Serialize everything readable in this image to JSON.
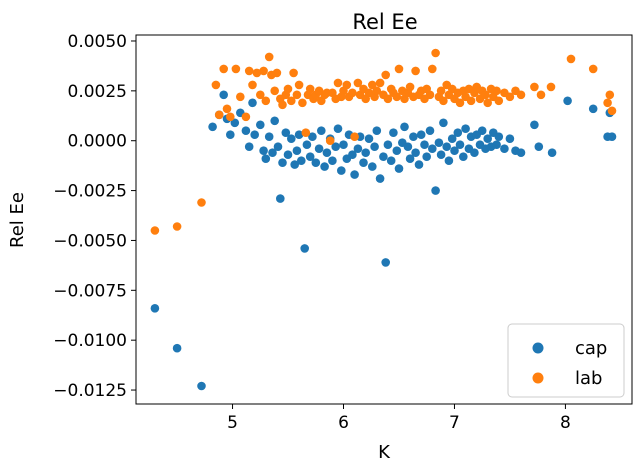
{
  "chart_data": {
    "type": "scatter",
    "title": "Rel Ee",
    "xlabel": "K",
    "ylabel": "Rel Ee",
    "xlim": [
      4.13,
      8.6
    ],
    "ylim": [
      -0.0132,
      0.0053
    ],
    "xticks": [
      5,
      6,
      7,
      8
    ],
    "yticks": [
      0.005,
      0.0025,
      0.0,
      -0.0025,
      -0.005,
      -0.0075,
      -0.01,
      -0.0125
    ],
    "ytick_labels": [
      "0.0050",
      "0.0025",
      "0.0000",
      "−0.0025",
      "−0.0050",
      "−0.0075",
      "−0.0100",
      "−0.0125"
    ],
    "grid": false,
    "legend_position": "lower-right",
    "series": [
      {
        "name": "cap",
        "color": "#1f77b4",
        "points": [
          [
            4.3,
            -0.0084
          ],
          [
            4.5,
            -0.0104
          ],
          [
            4.72,
            -0.0123
          ],
          [
            4.82,
            0.0007
          ],
          [
            4.88,
            0.0013
          ],
          [
            4.92,
            0.0023
          ],
          [
            4.95,
            0.0011
          ],
          [
            4.98,
            0.0003
          ],
          [
            5.02,
            0.0009
          ],
          [
            5.07,
            0.0014
          ],
          [
            5.12,
            0.0005
          ],
          [
            5.15,
            -0.0003
          ],
          [
            5.18,
            0.0019
          ],
          [
            5.2,
            0.0003
          ],
          [
            5.25,
            0.0008
          ],
          [
            5.28,
            -0.0005
          ],
          [
            5.3,
            -0.0009
          ],
          [
            5.33,
            0.0002
          ],
          [
            5.36,
            -0.0006
          ],
          [
            5.38,
            0.001
          ],
          [
            5.41,
            -0.0003
          ],
          [
            5.43,
            -0.0029
          ],
          [
            5.45,
            -0.0011
          ],
          [
            5.48,
            0.0004
          ],
          [
            5.5,
            -0.0007
          ],
          [
            5.53,
            0.0001
          ],
          [
            5.56,
            -0.0012
          ],
          [
            5.58,
            -0.0005
          ],
          [
            5.6,
            0.0003
          ],
          [
            5.62,
            -0.001
          ],
          [
            5.65,
            -0.0054
          ],
          [
            5.67,
            -0.0002
          ],
          [
            5.7,
            -0.0008
          ],
          [
            5.72,
            0.0002
          ],
          [
            5.75,
            -0.0011
          ],
          [
            5.78,
            -0.0004
          ],
          [
            5.8,
            0.0005
          ],
          [
            5.83,
            -0.0013
          ],
          [
            5.85,
            -0.0006
          ],
          [
            5.88,
            0.0001
          ],
          [
            5.9,
            -0.001
          ],
          [
            5.93,
            -0.0003
          ],
          [
            5.95,
            0.0006
          ],
          [
            5.98,
            -0.0015
          ],
          [
            6.0,
            -0.0002
          ],
          [
            6.03,
            -0.0009
          ],
          [
            6.05,
            0.0003
          ],
          [
            6.08,
            -0.0007
          ],
          [
            6.1,
            -0.0017
          ],
          [
            6.13,
            -0.0004
          ],
          [
            6.15,
            0.0002
          ],
          [
            6.18,
            -0.0011
          ],
          [
            6.2,
            -0.0006
          ],
          [
            6.23,
            0.0001
          ],
          [
            6.26,
            -0.0013
          ],
          [
            6.28,
            -0.0003
          ],
          [
            6.3,
            0.0005
          ],
          [
            6.33,
            -0.0019
          ],
          [
            6.36,
            -0.0008
          ],
          [
            6.38,
            -0.0061
          ],
          [
            6.4,
            -0.0002
          ],
          [
            6.43,
            -0.001
          ],
          [
            6.45,
            0.0004
          ],
          [
            6.48,
            -0.0005
          ],
          [
            6.5,
            -0.0014
          ],
          [
            6.53,
            -0.0001
          ],
          [
            6.55,
            0.0007
          ],
          [
            6.58,
            -0.0003
          ],
          [
            6.6,
            -0.0009
          ],
          [
            6.63,
            0.0002
          ],
          [
            6.65,
            -0.0006
          ],
          [
            6.68,
            -0.0012
          ],
          [
            6.7,
            0.0003
          ],
          [
            6.73,
            -0.0002
          ],
          [
            6.75,
            -0.0008
          ],
          [
            6.78,
            0.0005
          ],
          [
            6.8,
            -0.0004
          ],
          [
            6.83,
            -0.0025
          ],
          [
            6.86,
            -0.0001
          ],
          [
            6.88,
            -0.0007
          ],
          [
            6.9,
            0.0009
          ],
          [
            6.93,
            -0.0003
          ],
          [
            6.95,
            -0.001
          ],
          [
            6.98,
            0.0001
          ],
          [
            7.0,
            -0.0005
          ],
          [
            7.03,
            0.0004
          ],
          [
            7.05,
            -0.0002
          ],
          [
            7.08,
            -0.0008
          ],
          [
            7.1,
            0.0006
          ],
          [
            7.13,
            -0.0004
          ],
          [
            7.15,
            0.0002
          ],
          [
            7.18,
            -0.0006
          ],
          [
            7.2,
            0.0003
          ],
          [
            7.23,
            -0.0002
          ],
          [
            7.25,
            0.0005
          ],
          [
            7.28,
            -0.0004
          ],
          [
            7.3,
            0.0001
          ],
          [
            7.33,
            -0.0003
          ],
          [
            7.35,
            0.0004
          ],
          [
            7.38,
            -0.0002
          ],
          [
            7.4,
            0.0002
          ],
          [
            7.45,
            -0.0004
          ],
          [
            7.5,
            0.0001
          ],
          [
            7.55,
            -0.0005
          ],
          [
            7.6,
            -0.0006
          ],
          [
            7.72,
            0.0008
          ],
          [
            7.76,
            -0.0003
          ],
          [
            7.88,
            -0.0006
          ],
          [
            8.02,
            0.002
          ],
          [
            8.25,
            0.0016
          ],
          [
            8.38,
            0.0002
          ],
          [
            8.4,
            0.0014
          ],
          [
            8.42,
            0.0002
          ]
        ]
      },
      {
        "name": "lab",
        "color": "#ff7f0e",
        "points": [
          [
            4.3,
            -0.0045
          ],
          [
            4.5,
            -0.0043
          ],
          [
            4.72,
            -0.0031
          ],
          [
            4.85,
            0.0028
          ],
          [
            4.88,
            0.0013
          ],
          [
            4.92,
            0.0036
          ],
          [
            4.95,
            0.0016
          ],
          [
            4.98,
            0.0012
          ],
          [
            5.03,
            0.0036
          ],
          [
            5.07,
            0.0022
          ],
          [
            5.12,
            0.0012
          ],
          [
            5.15,
            0.0035
          ],
          [
            5.18,
            0.0028
          ],
          [
            5.22,
            0.0034
          ],
          [
            5.25,
            0.0023
          ],
          [
            5.28,
            0.0035
          ],
          [
            5.3,
            0.002
          ],
          [
            5.33,
            0.0042
          ],
          [
            5.35,
            0.0033
          ],
          [
            5.38,
            0.0025
          ],
          [
            5.4,
            0.0034
          ],
          [
            5.43,
            0.0021
          ],
          [
            5.45,
            0.0018
          ],
          [
            5.48,
            0.0023
          ],
          [
            5.5,
            0.0026
          ],
          [
            5.53,
            0.002
          ],
          [
            5.55,
            0.0034
          ],
          [
            5.58,
            0.0023
          ],
          [
            5.6,
            0.0028
          ],
          [
            5.63,
            0.0019
          ],
          [
            5.66,
            0.0004
          ],
          [
            5.68,
            0.0023
          ],
          [
            5.7,
            0.0026
          ],
          [
            5.73,
            0.0021
          ],
          [
            5.75,
            0.0023
          ],
          [
            5.78,
            0.0025
          ],
          [
            5.8,
            0.002
          ],
          [
            5.83,
            0.0023
          ],
          [
            5.85,
            0.0024
          ],
          [
            5.88,
            0.0
          ],
          [
            5.9,
            0.0024
          ],
          [
            5.93,
            0.0021
          ],
          [
            5.95,
            0.0029
          ],
          [
            5.98,
            0.0022
          ],
          [
            6.0,
            0.0025
          ],
          [
            6.03,
            0.0028
          ],
          [
            6.05,
            0.0022
          ],
          [
            6.08,
            0.0024
          ],
          [
            6.1,
            0.0002
          ],
          [
            6.13,
            0.0029
          ],
          [
            6.15,
            0.0023
          ],
          [
            6.18,
            0.0026
          ],
          [
            6.2,
            0.0021
          ],
          [
            6.23,
            0.0024
          ],
          [
            6.26,
            0.0028
          ],
          [
            6.28,
            0.0022
          ],
          [
            6.3,
            0.0025
          ],
          [
            6.33,
            0.0029
          ],
          [
            6.36,
            0.0023
          ],
          [
            6.38,
            0.0033
          ],
          [
            6.4,
            0.0021
          ],
          [
            6.43,
            0.0026
          ],
          [
            6.45,
            0.0024
          ],
          [
            6.48,
            0.0022
          ],
          [
            6.5,
            0.0036
          ],
          [
            6.53,
            0.0025
          ],
          [
            6.55,
            0.0021
          ],
          [
            6.58,
            0.0024
          ],
          [
            6.6,
            0.0027
          ],
          [
            6.63,
            0.0022
          ],
          [
            6.65,
            0.0035
          ],
          [
            6.68,
            0.0023
          ],
          [
            6.7,
            0.0025
          ],
          [
            6.73,
            0.0021
          ],
          [
            6.75,
            0.0026
          ],
          [
            6.78,
            0.0023
          ],
          [
            6.8,
            0.0036
          ],
          [
            6.83,
            0.0044
          ],
          [
            6.86,
            0.0022
          ],
          [
            6.88,
            0.0025
          ],
          [
            6.9,
            0.002
          ],
          [
            6.93,
            0.0028
          ],
          [
            6.95,
            0.0023
          ],
          [
            6.98,
            0.0026
          ],
          [
            7.0,
            0.0021
          ],
          [
            7.03,
            0.0024
          ],
          [
            7.05,
            0.0019
          ],
          [
            7.08,
            0.0025
          ],
          [
            7.1,
            0.0022
          ],
          [
            7.13,
            0.0026
          ],
          [
            7.15,
            0.002
          ],
          [
            7.18,
            0.0024
          ],
          [
            7.2,
            0.0027
          ],
          [
            7.23,
            0.0021
          ],
          [
            7.25,
            0.0025
          ],
          [
            7.28,
            0.0023
          ],
          [
            7.3,
            0.0019
          ],
          [
            7.33,
            0.0026
          ],
          [
            7.35,
            0.0022
          ],
          [
            7.38,
            0.0025
          ],
          [
            7.4,
            0.002
          ],
          [
            7.45,
            0.0024
          ],
          [
            7.5,
            0.0022
          ],
          [
            7.55,
            0.0025
          ],
          [
            7.6,
            0.0023
          ],
          [
            7.72,
            0.0027
          ],
          [
            7.78,
            0.0023
          ],
          [
            7.87,
            0.0027
          ],
          [
            8.05,
            0.0041
          ],
          [
            8.25,
            0.0036
          ],
          [
            8.38,
            0.0019
          ],
          [
            8.4,
            0.0023
          ],
          [
            8.42,
            0.0015
          ]
        ]
      }
    ]
  }
}
